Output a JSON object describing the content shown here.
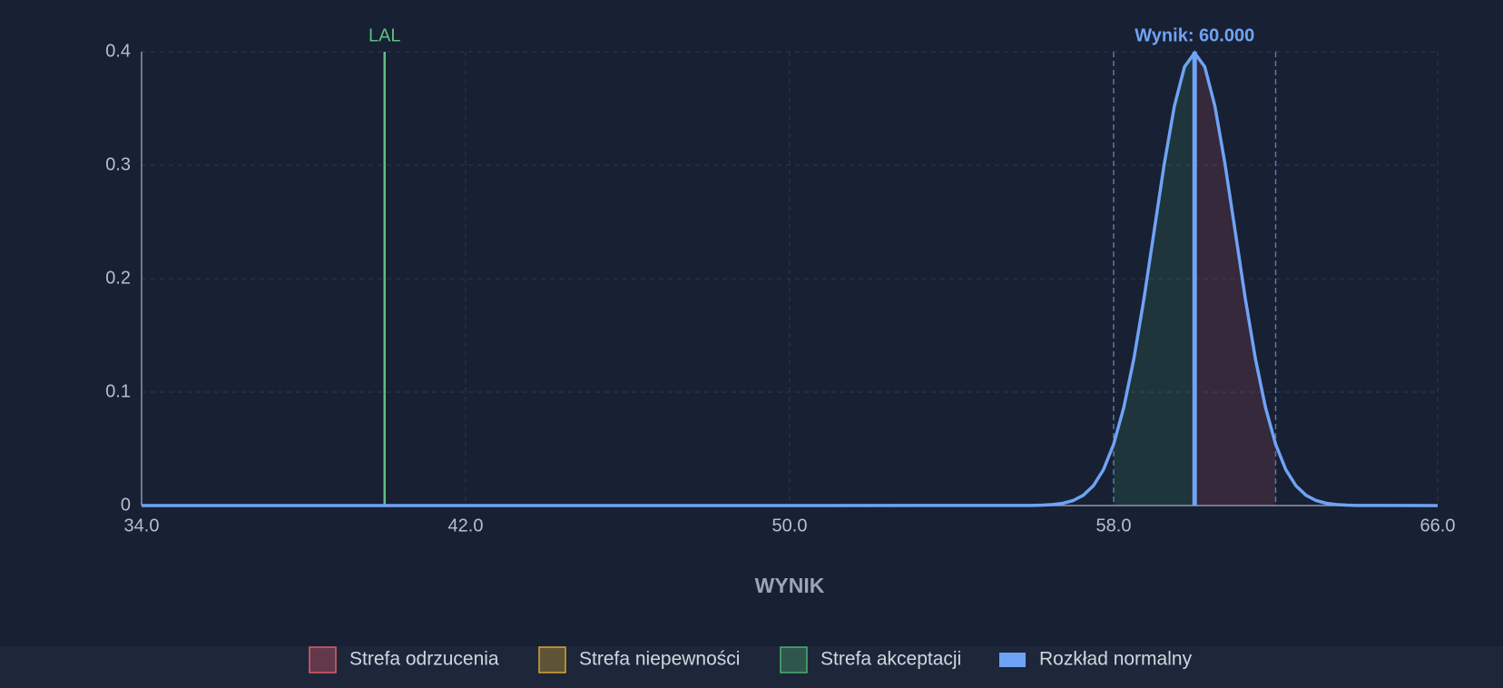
{
  "chart_data": {
    "type": "line",
    "xlabel": "WYNIK",
    "xlim": [
      34,
      66
    ],
    "ylim": [
      0,
      0.4
    ],
    "xticks": [
      {
        "value": 34,
        "label": "34.0"
      },
      {
        "value": 42,
        "label": "42.0"
      },
      {
        "value": 50,
        "label": "50.0"
      },
      {
        "value": 58,
        "label": "58.0"
      },
      {
        "value": 66,
        "label": "66.0"
      }
    ],
    "yticks": [
      0,
      0.1,
      0.2,
      0.3,
      0.4
    ],
    "grid": true,
    "x": [
      34,
      50,
      56,
      56.25,
      56.5,
      56.75,
      57,
      57.25,
      57.5,
      57.75,
      58,
      58.25,
      58.5,
      58.75,
      59,
      59.25,
      59.5,
      59.75,
      60,
      60.25,
      60.5,
      60.75,
      61,
      61.25,
      61.5,
      61.75,
      62,
      62.25,
      62.5,
      62.75,
      63,
      63.25,
      63.5,
      63.75,
      64,
      66
    ],
    "series": [
      {
        "name": "Rozkład normalny",
        "color": "#6fa3f5",
        "values": [
          0,
          0,
          0.0001,
          0.0004,
          0.0009,
          0.002,
          0.0044,
          0.0091,
          0.0175,
          0.0317,
          0.054,
          0.0863,
          0.1295,
          0.1826,
          0.242,
          0.3011,
          0.3521,
          0.3867,
          0.399,
          0.3867,
          0.3521,
          0.3011,
          0.242,
          0.1826,
          0.1295,
          0.0863,
          0.054,
          0.0317,
          0.0175,
          0.0091,
          0.0044,
          0.002,
          0.0009,
          0.0004,
          0.0001,
          0
        ]
      }
    ],
    "regions": [
      {
        "name": "Strefa odrzucenia",
        "color": "#e05c6a",
        "from": 60,
        "to": 62
      },
      {
        "name": "Strefa niepewności",
        "color": "#d9a632"
      },
      {
        "name": "Strefa akceptacji",
        "color": "#4caf72",
        "from": 58,
        "to": 60
      }
    ],
    "markers": [
      {
        "label": "LAL",
        "x": 40,
        "color": "#5cbf82"
      },
      {
        "label": "Wynik: 60.000",
        "x": 60,
        "color": "#6fa3f5"
      }
    ],
    "limits": [
      58,
      62
    ]
  }
}
